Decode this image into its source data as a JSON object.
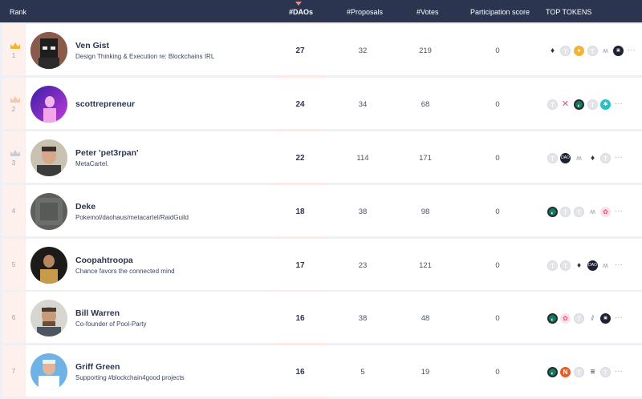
{
  "header": {
    "rank": "Rank",
    "daos": "#DAOs",
    "proposals": "#Proposals",
    "votes": "#Votes",
    "participation": "Participation score",
    "top_tokens": "TOP TOKENS"
  },
  "rows": [
    {
      "rank": "1",
      "crown": "crown-gold",
      "name": "Ven Gist",
      "bio": "Design Thinking & Execution re: Blockchains IRL",
      "daos": "27",
      "proposals": "32",
      "votes": "219",
      "participation": "0",
      "tokens": [
        "eth-icon",
        "token-t-icon",
        "gold-token-icon",
        "token-t-icon",
        "balancer-icon",
        "dark-token-icon"
      ],
      "more": "···"
    },
    {
      "rank": "2",
      "crown": "crown-silver",
      "name": "scottrepreneur",
      "bio": "",
      "daos": "24",
      "proposals": "34",
      "votes": "68",
      "participation": "0",
      "tokens": [
        "token-t-icon",
        "pink-x-icon",
        "green-token-icon",
        "token-t-icon",
        "teal-snowflake-icon"
      ],
      "more": "···"
    },
    {
      "rank": "3",
      "crown": "crown-bronze",
      "name": "Peter 'pet3rpan'",
      "bio": "MetaCartel.",
      "daos": "22",
      "proposals": "114",
      "votes": "171",
      "participation": "0",
      "tokens": [
        "token-t-icon",
        "dao-token-icon",
        "balancer-icon",
        "eth-icon",
        "token-t-icon"
      ],
      "more": "···"
    },
    {
      "rank": "4",
      "crown": "",
      "name": "Deke",
      "bio": "Pokemol/daohaus/metacartel/RaidGuild",
      "daos": "18",
      "proposals": "38",
      "votes": "98",
      "participation": "0",
      "tokens": [
        "green-token-icon",
        "token-t-icon",
        "token-t-icon",
        "balancer-icon",
        "pink-token-icon"
      ],
      "more": "···"
    },
    {
      "rank": "5",
      "crown": "",
      "name": "Coopahtroopa",
      "bio": "Chance favors the connected mind",
      "daos": "17",
      "proposals": "23",
      "votes": "121",
      "participation": "0",
      "tokens": [
        "token-t-icon",
        "token-t-icon",
        "eth-icon",
        "dao-token-icon",
        "balancer-icon"
      ],
      "more": "···"
    },
    {
      "rank": "6",
      "crown": "",
      "name": "Bill Warren",
      "bio": "Co-founder of Pool-Party",
      "daos": "16",
      "proposals": "38",
      "votes": "48",
      "participation": "0",
      "tokens": [
        "green-token-icon",
        "pink-token-icon",
        "token-t-icon",
        "blue-token-icon",
        "dark-token-icon"
      ],
      "more": "···"
    },
    {
      "rank": "7",
      "crown": "",
      "name": "Griff Green",
      "bio": "Supporting #blockchain4good projects",
      "daos": "16",
      "proposals": "5",
      "votes": "19",
      "participation": "0",
      "tokens": [
        "green-token-icon",
        "orange-token-icon",
        "token-t-icon",
        "stack-token-icon",
        "token-t-icon"
      ],
      "more": "···"
    }
  ],
  "colors": {
    "header_bg": "#2b3550",
    "dao_column_bg": "#fde9e6",
    "name_text": "#2b3550",
    "crown_gold": "#f4b433"
  }
}
